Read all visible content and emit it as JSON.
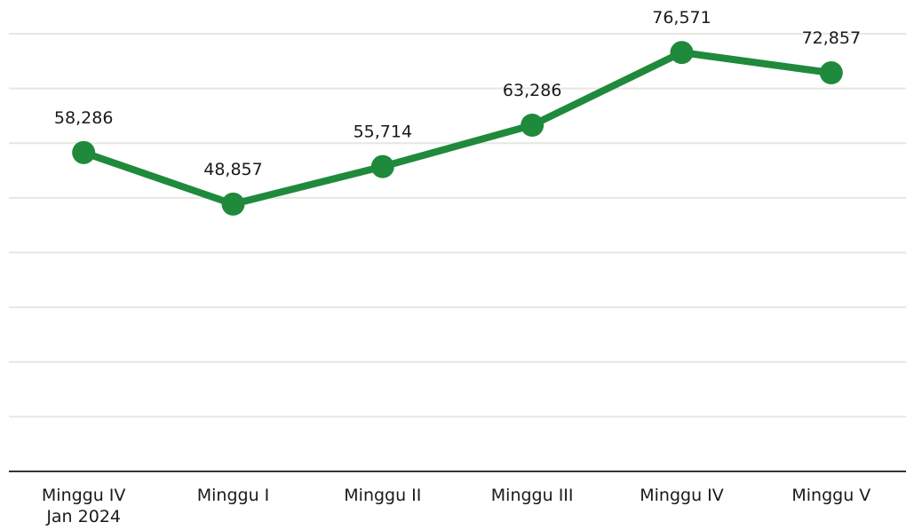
{
  "chart_data": {
    "type": "line",
    "categories": [
      "Minggu IV\nJan 2024",
      "Minggu I",
      "Minggu II",
      "Minggu III",
      "Minggu IV",
      "Minggu V"
    ],
    "series": [
      {
        "color": "#1f8a3b",
        "values": [
          58286,
          48857,
          55714,
          63286,
          76571,
          72857
        ],
        "value_labels": [
          "58,286",
          "48,857",
          "55,714",
          "63,286",
          "76,571",
          "72,857"
        ]
      }
    ],
    "ylim": [
      0,
      80000
    ],
    "yticks": [
      0,
      10000,
      20000,
      30000,
      40000,
      50000,
      60000,
      70000,
      80000
    ],
    "grid": true
  }
}
